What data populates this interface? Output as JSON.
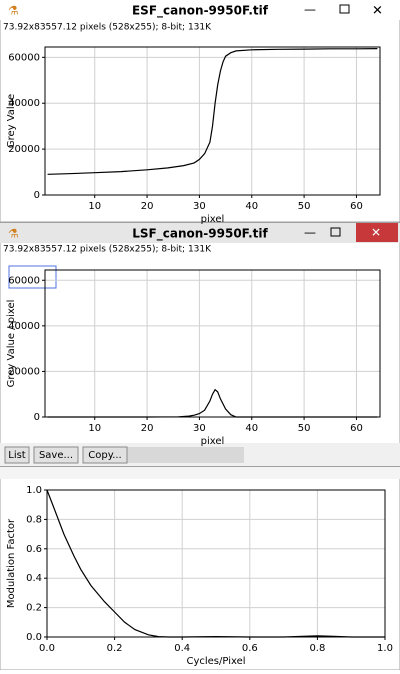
{
  "windows": [
    {
      "title": "ESF_canon-9950F.tif",
      "info": "73.92x83557.12 pixels (528x255); 8-bit; 131K",
      "chart_data": {
        "type": "line",
        "xlabel": "pixel",
        "ylabel": "Grey Value",
        "color": "#000000",
        "grid": true,
        "x": [
          1,
          5,
          10,
          15,
          20,
          24,
          27,
          29,
          30,
          31,
          32,
          32.5,
          33,
          33.5,
          34,
          34.5,
          35,
          36,
          37,
          40,
          45,
          50,
          55,
          60,
          64
        ],
        "values": [
          9000,
          9300,
          9700,
          10200,
          11000,
          11800,
          12800,
          14000,
          15500,
          18000,
          23000,
          30000,
          40000,
          48000,
          54000,
          58000,
          60500,
          62000,
          62800,
          63300,
          63500,
          63600,
          63700,
          63700,
          63800
        ],
        "xlim": [
          0.5,
          64.5
        ],
        "ylim": [
          0,
          64500
        ],
        "xticks": [
          10,
          20,
          30,
          40,
          50,
          60
        ],
        "yticks": [
          0,
          20000,
          40000,
          60000
        ]
      }
    },
    {
      "title": "LSF_canon-9950F.tif",
      "info": "73.92x83557.12 pixels (528x255); 8-bit; 131K",
      "buttons": [
        "List",
        "Save...",
        "Copy..."
      ],
      "chart_data": {
        "type": "line",
        "xlabel": "pixel",
        "ylabel": "Grey Value / pixel",
        "color": "#000000",
        "grid": true,
        "x": [
          1,
          10,
          20,
          26,
          28,
          29,
          30,
          31,
          32,
          32.5,
          33,
          33.5,
          34,
          35,
          36,
          37,
          40,
          50,
          64
        ],
        "values": [
          0,
          0,
          0,
          100,
          400,
          800,
          1500,
          3000,
          7000,
          10000,
          12000,
          11000,
          8000,
          3500,
          1000,
          0,
          0,
          0,
          0
        ],
        "xlim": [
          0.5,
          64.5
        ],
        "ylim": [
          0,
          64500
        ],
        "xticks": [
          10,
          20,
          30,
          40,
          50,
          60
        ],
        "yticks": [
          0,
          20000,
          40000,
          60000
        ]
      }
    },
    {
      "chart_data": {
        "type": "line",
        "xlabel": "Cycles/Pixel",
        "ylabel": "Modulation Factor",
        "color": "#000000",
        "grid": true,
        "x": [
          0,
          0.02,
          0.05,
          0.08,
          0.1,
          0.13,
          0.17,
          0.2,
          0.23,
          0.26,
          0.3,
          0.33,
          0.36,
          0.4,
          0.5,
          0.6,
          0.7,
          0.8,
          0.85,
          0.9,
          1.0
        ],
        "values": [
          1.0,
          0.88,
          0.7,
          0.55,
          0.46,
          0.35,
          0.24,
          0.17,
          0.1,
          0.05,
          0.015,
          0.003,
          0,
          0,
          0.003,
          0,
          0,
          0.008,
          0.005,
          0,
          0
        ],
        "xlim": [
          0,
          1
        ],
        "ylim": [
          0,
          1
        ],
        "xticks": [
          {
            "value": 0,
            "label": "0.0"
          },
          0.2,
          0.4,
          0.6,
          0.8,
          {
            "value": 1,
            "label": "1.0"
          }
        ],
        "yticks": [
          {
            "value": 0,
            "label": "0.0"
          },
          0.2,
          0.4,
          0.6,
          0.8,
          {
            "value": 1,
            "label": "1.0"
          }
        ]
      }
    }
  ]
}
